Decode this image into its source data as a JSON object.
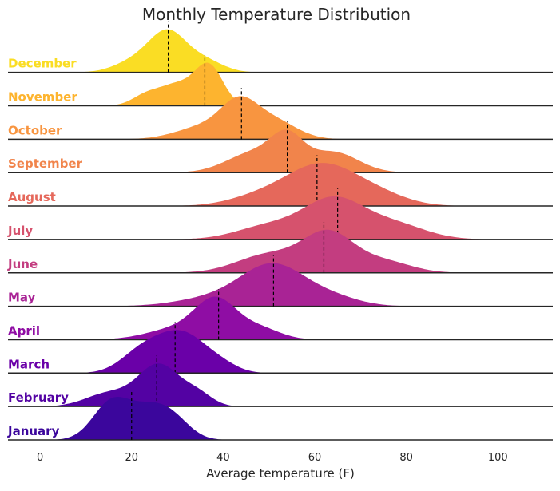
{
  "chart_data": {
    "type": "area",
    "title": "Monthly Temperature Distribution",
    "xlabel": "Average temperature (F)",
    "ylabel": "",
    "xlim": [
      -7,
      112
    ],
    "xticks": [
      0,
      20,
      40,
      60,
      80,
      100
    ],
    "xtick_labels": [
      "0",
      "20",
      "40",
      "60",
      "80",
      "100"
    ],
    "grid": false,
    "series": [
      {
        "name": "January",
        "color": "#3b069c",
        "mean": 20,
        "components": [
          {
            "mu": 15.5,
            "sigma": 4.0,
            "w": 0.8
          },
          {
            "mu": 24.5,
            "sigma": 4.8,
            "w": 0.72
          },
          {
            "mu": 30,
            "sigma": 3.5,
            "w": 0.2
          }
        ]
      },
      {
        "name": "February",
        "color": "#5302a3",
        "mean": 25.5,
        "components": [
          {
            "mu": 26,
            "sigma": 4.5,
            "w": 1.0
          },
          {
            "mu": 15,
            "sigma": 5.0,
            "w": 0.32
          },
          {
            "mu": 34.5,
            "sigma": 3.2,
            "w": 0.28
          }
        ]
      },
      {
        "name": "March",
        "color": "#6a00a8",
        "mean": 29.5,
        "components": [
          {
            "mu": 31,
            "sigma": 5.5,
            "w": 0.95
          },
          {
            "mu": 22,
            "sigma": 4.5,
            "w": 0.45
          },
          {
            "mu": 40,
            "sigma": 3.5,
            "w": 0.12
          }
        ]
      },
      {
        "name": "April",
        "color": "#8f0da4",
        "mean": 39,
        "components": [
          {
            "mu": 38.5,
            "sigma": 4.5,
            "w": 1.0
          },
          {
            "mu": 30,
            "sigma": 6.5,
            "w": 0.3
          },
          {
            "mu": 48,
            "sigma": 4.5,
            "w": 0.3
          }
        ]
      },
      {
        "name": "May",
        "color": "#a92395",
        "mean": 51,
        "components": [
          {
            "mu": 51,
            "sigma": 7.0,
            "w": 1.0
          },
          {
            "mu": 38,
            "sigma": 8.0,
            "w": 0.2
          },
          {
            "mu": 64,
            "sigma": 6.0,
            "w": 0.2
          }
        ]
      },
      {
        "name": "June",
        "color": "#c33d80",
        "mean": 62,
        "components": [
          {
            "mu": 63,
            "sigma": 5.5,
            "w": 1.0
          },
          {
            "mu": 50,
            "sigma": 7.0,
            "w": 0.48
          },
          {
            "mu": 75,
            "sigma": 6.0,
            "w": 0.3
          }
        ]
      },
      {
        "name": "July",
        "color": "#d6526d",
        "mean": 65,
        "components": [
          {
            "mu": 64,
            "sigma": 6.5,
            "w": 1.0
          },
          {
            "mu": 50,
            "sigma": 7.0,
            "w": 0.35
          },
          {
            "mu": 77,
            "sigma": 7.0,
            "w": 0.4
          }
        ]
      },
      {
        "name": "August",
        "color": "#e5685b",
        "mean": 60.5,
        "components": [
          {
            "mu": 61,
            "sigma": 7.0,
            "w": 1.0
          },
          {
            "mu": 49,
            "sigma": 7.0,
            "w": 0.3
          },
          {
            "mu": 72,
            "sigma": 7.0,
            "w": 0.4
          }
        ]
      },
      {
        "name": "September",
        "color": "#f1844b",
        "mean": 54,
        "components": [
          {
            "mu": 54,
            "sigma": 3.5,
            "w": 0.7
          },
          {
            "mu": 47,
            "sigma": 6.0,
            "w": 0.5
          },
          {
            "mu": 64,
            "sigma": 5.5,
            "w": 0.5
          }
        ]
      },
      {
        "name": "October",
        "color": "#f89540",
        "mean": 44,
        "components": [
          {
            "mu": 43.5,
            "sigma": 4.0,
            "w": 0.85
          },
          {
            "mu": 36,
            "sigma": 6.0,
            "w": 0.35
          },
          {
            "mu": 51,
            "sigma": 5.0,
            "w": 0.5
          }
        ]
      },
      {
        "name": "November",
        "color": "#fdb42f",
        "mean": 36,
        "components": [
          {
            "mu": 37,
            "sigma": 3.0,
            "w": 0.9
          },
          {
            "mu": 30,
            "sigma": 4.0,
            "w": 0.5
          },
          {
            "mu": 23,
            "sigma": 3.0,
            "w": 0.22
          }
        ]
      },
      {
        "name": "December",
        "color": "#fadd24",
        "mean": 28,
        "components": [
          {
            "mu": 28,
            "sigma": 4.0,
            "w": 1.0
          },
          {
            "mu": 21,
            "sigma": 4.5,
            "w": 0.3
          },
          {
            "mu": 36,
            "sigma": 4.0,
            "w": 0.3
          }
        ]
      }
    ]
  }
}
